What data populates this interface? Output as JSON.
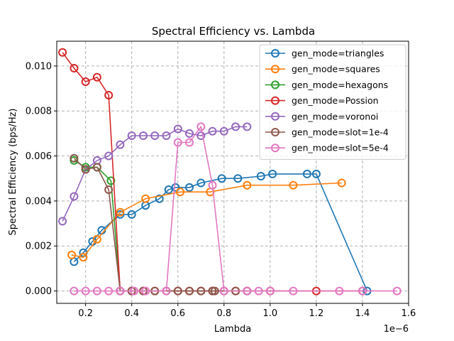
{
  "chart_data": {
    "type": "line",
    "title": "Spectral Efficiency vs. Lambda",
    "xlabel": "Lambda",
    "ylabel": "Spectral Efficiency (bps/Hz)",
    "x_offset_text": "1e−6",
    "xlim": [
      0.075,
      1.6
    ],
    "ylim": [
      -0.00055,
      0.0111
    ],
    "x_ticks": [
      0.2,
      0.4,
      0.6,
      0.8,
      1.0,
      1.2,
      1.4,
      1.6
    ],
    "x_tick_labels": [
      "0.2",
      "0.4",
      "0.6",
      "0.8",
      "1.0",
      "1.2",
      "1.4",
      "1.6"
    ],
    "y_ticks": [
      0.0,
      0.002,
      0.004,
      0.006,
      0.008,
      0.01
    ],
    "y_tick_labels": [
      "0.000",
      "0.002",
      "0.004",
      "0.006",
      "0.008",
      "0.010"
    ],
    "grid": true,
    "legend_position": "top-right",
    "series": [
      {
        "name": "gen_mode=triangles",
        "color": "#1f77b4",
        "x": [
          0.15,
          0.19,
          0.23,
          0.27,
          0.35,
          0.4,
          0.46,
          0.52,
          0.56,
          0.59,
          0.65,
          0.7,
          0.79,
          0.86,
          0.96,
          1.01,
          1.16,
          1.2,
          1.42
        ],
        "y": [
          0.0013,
          0.0017,
          0.0022,
          0.0027,
          0.0034,
          0.0034,
          0.0038,
          0.0041,
          0.0045,
          0.0046,
          0.0046,
          0.0048,
          0.005,
          0.005,
          0.0051,
          0.0052,
          0.0052,
          0.0052,
          0.0
        ]
      },
      {
        "name": "gen_mode=squares",
        "color": "#ff7f0e",
        "x": [
          0.14,
          0.19,
          0.25,
          0.35,
          0.46,
          0.61,
          0.74,
          0.9,
          1.1,
          1.31
        ],
        "y": [
          0.0016,
          0.0015,
          0.0023,
          0.0035,
          0.0041,
          0.0044,
          0.0044,
          0.0047,
          0.0047,
          0.0048
        ]
      },
      {
        "name": "gen_mode=hexagons",
        "color": "#2ca02c",
        "x": [
          0.15,
          0.2,
          0.25,
          0.31,
          0.35
        ],
        "y": [
          0.0058,
          0.0055,
          0.0055,
          0.0049,
          0.0
        ]
      },
      {
        "name": "gen_mode=Possion",
        "color": "#d62728",
        "x": [
          0.1,
          0.15,
          0.2,
          0.25,
          0.3,
          0.35,
          0.4,
          0.45,
          0.5,
          0.55,
          0.6,
          0.65,
          0.7,
          0.75,
          0.8,
          0.85,
          0.9,
          1.0,
          1.2,
          1.4
        ],
        "y": [
          0.0106,
          0.0099,
          0.0093,
          0.0095,
          0.0087,
          0.0,
          0.0,
          0.0,
          0.0,
          0.0,
          0.0,
          0.0,
          0.0,
          0.0,
          0.0,
          0.0,
          0.0,
          0.0,
          0.0,
          0.0
        ]
      },
      {
        "name": "gen_mode=voronoi",
        "color": "#9467bd",
        "x": [
          0.1,
          0.15,
          0.2,
          0.25,
          0.3,
          0.35,
          0.4,
          0.45,
          0.5,
          0.55,
          0.6,
          0.65,
          0.7,
          0.75,
          0.8,
          0.85,
          0.9
        ],
        "y": [
          0.0031,
          0.0042,
          0.0054,
          0.0058,
          0.006,
          0.0065,
          0.0069,
          0.0069,
          0.0069,
          0.0069,
          0.0072,
          0.007,
          0.0069,
          0.0071,
          0.0071,
          0.0073,
          0.0073
        ]
      },
      {
        "name": "gen_mode=slot=1e-4",
        "color": "#8c564b",
        "x": [
          0.15,
          0.2,
          0.25,
          0.3,
          0.35,
          0.4,
          0.45,
          0.5,
          0.6,
          0.65,
          0.7,
          0.75,
          0.76,
          0.85,
          0.9
        ],
        "y": [
          0.0059,
          0.0054,
          0.0055,
          0.0045,
          0.0,
          0.0,
          0.0,
          0.0,
          0.0,
          0.0,
          0.0,
          0.0,
          0.0,
          0.0,
          0.0
        ]
      },
      {
        "name": "gen_mode=slot=5e-4",
        "color": "#e377c2",
        "x": [
          0.15,
          0.2,
          0.25,
          0.3,
          0.35,
          0.41,
          0.46,
          0.55,
          0.6,
          0.65,
          0.7,
          0.75,
          0.8,
          0.9,
          0.95,
          1.0,
          1.1,
          1.3,
          1.4,
          1.55
        ],
        "y": [
          0.0,
          0.0,
          0.0,
          0.0,
          0.0,
          0.0,
          0.0,
          0.0,
          0.0066,
          0.0066,
          0.0073,
          0.0047,
          0.0,
          0.0,
          0.0,
          0.0,
          0.0,
          0.0,
          0.0,
          0.0
        ]
      }
    ]
  }
}
